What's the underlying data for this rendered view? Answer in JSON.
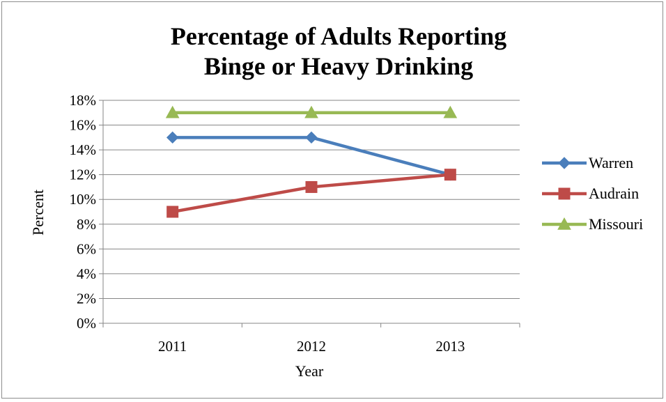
{
  "chart_data": {
    "type": "line",
    "title_lines": [
      "Percentage of Adults Reporting",
      "Binge or Heavy Drinking"
    ],
    "xlabel": "Year",
    "ylabel": "Percent",
    "categories": [
      "2011",
      "2012",
      "2013"
    ],
    "ylim": [
      0,
      18
    ],
    "ytick_step": 2,
    "ytick_labels": [
      "0%",
      "2%",
      "4%",
      "6%",
      "8%",
      "10%",
      "12%",
      "14%",
      "16%",
      "18%"
    ],
    "grid": true,
    "legend_position": "right",
    "series": [
      {
        "name": "Warren",
        "values": [
          15,
          15,
          12
        ],
        "color": "#4a7ebb",
        "marker": "diamond"
      },
      {
        "name": "Audrain",
        "values": [
          9,
          11,
          12
        ],
        "color": "#be4b48",
        "marker": "square"
      },
      {
        "name": "Missouri",
        "values": [
          17,
          17,
          17
        ],
        "color": "#98b954",
        "marker": "triangle"
      }
    ]
  }
}
